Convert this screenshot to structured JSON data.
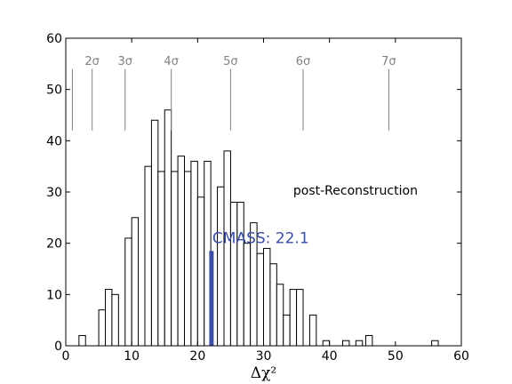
{
  "chart_data": {
    "type": "bar",
    "xlabel": "Δχ²",
    "ylabel": "",
    "xlim": [
      0,
      60
    ],
    "ylim": [
      0,
      60
    ],
    "xticks": [
      0,
      10,
      20,
      30,
      40,
      50,
      60
    ],
    "yticks": [
      0,
      10,
      20,
      30,
      40,
      50,
      60
    ],
    "grid": false,
    "bin_width": 1.0,
    "series": [
      {
        "bins": [
          {
            "x0": 2.0,
            "count": 2
          },
          {
            "x0": 5.0,
            "count": 7
          },
          {
            "x0": 6.0,
            "count": 11
          },
          {
            "x0": 7.0,
            "count": 10
          },
          {
            "x0": 9.0,
            "count": 21
          },
          {
            "x0": 10.0,
            "count": 25
          },
          {
            "x0": 12.0,
            "count": 35
          },
          {
            "x0": 13.0,
            "count": 44
          },
          {
            "x0": 14.0,
            "count": 34
          },
          {
            "x0": 15.0,
            "count": 46
          },
          {
            "x0": 16.0,
            "count": 34
          },
          {
            "x0": 17.0,
            "count": 37
          },
          {
            "x0": 18.0,
            "count": 34
          },
          {
            "x0": 19.0,
            "count": 36
          },
          {
            "x0": 20.0,
            "count": 29
          },
          {
            "x0": 21.0,
            "count": 36
          },
          {
            "x0": 23.0,
            "count": 31
          },
          {
            "x0": 24.0,
            "count": 38
          },
          {
            "x0": 25.0,
            "count": 28
          },
          {
            "x0": 26.0,
            "count": 28
          },
          {
            "x0": 27.0,
            "count": 20
          },
          {
            "x0": 28.0,
            "count": 24
          },
          {
            "x0": 29.0,
            "count": 18
          },
          {
            "x0": 30.0,
            "count": 19
          },
          {
            "x0": 31.0,
            "count": 16
          },
          {
            "x0": 32.0,
            "count": 12
          },
          {
            "x0": 33.0,
            "count": 6
          },
          {
            "x0": 34.0,
            "count": 11
          },
          {
            "x0": 35.0,
            "count": 11
          },
          {
            "x0": 37.0,
            "count": 6
          },
          {
            "x0": 39.0,
            "count": 1
          },
          {
            "x0": 42.0,
            "count": 1
          },
          {
            "x0": 44.0,
            "count": 1
          },
          {
            "x0": 45.5,
            "count": 2
          },
          {
            "x0": 55.5,
            "count": 1
          }
        ]
      }
    ],
    "sigma_markers": [
      {
        "x": 1.0,
        "label": ""
      },
      {
        "x": 4.0,
        "label": "2σ"
      },
      {
        "x": 9.0,
        "label": "3σ"
      },
      {
        "x": 16.0,
        "label": "4σ"
      },
      {
        "x": 25.0,
        "label": "5σ"
      },
      {
        "x": 36.0,
        "label": "6σ"
      },
      {
        "x": 49.0,
        "label": "7σ"
      }
    ],
    "sigma_line_range": [
      42,
      54
    ],
    "highlight": {
      "x": 22.1,
      "height": 18.5,
      "label": "CMASS: 22.1",
      "color": "#3a4fa3"
    },
    "annotation": "post-Reconstruction"
  }
}
